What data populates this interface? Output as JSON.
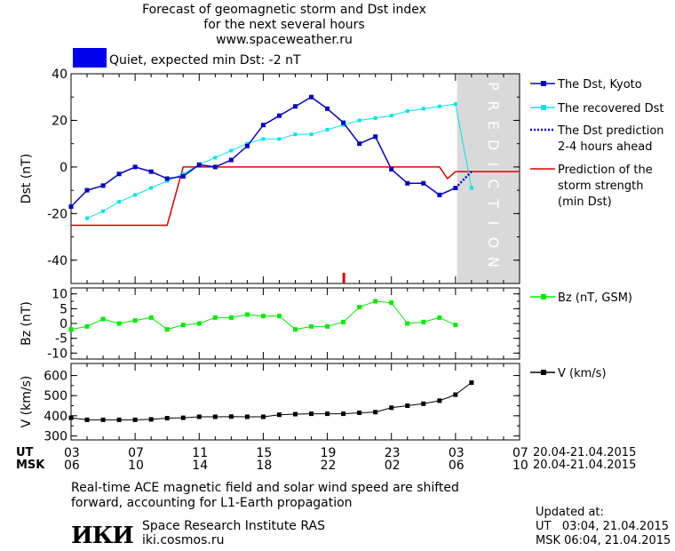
{
  "header": {
    "title_line1": "Forecast of geomagnetic storm and Dst index",
    "title_line2": "for the next several hours",
    "url": "www.spaceweather.ru",
    "status_text": "Quiet, expected min Dst: -2 nT",
    "status_color": "#0000ee"
  },
  "prediction_label": "PREDICTION",
  "time_axis": {
    "ut_label": "UT",
    "msk_label": "MSK",
    "ut_ticks": [
      "03",
      "07",
      "11",
      "15",
      "19",
      "23",
      "03",
      "07"
    ],
    "msk_ticks": [
      "06",
      "10",
      "14",
      "18",
      "22",
      "02",
      "06",
      "10"
    ],
    "date_range_ut": "20.04-21.04.2015",
    "date_range_msk": "20.04-21.04.2015"
  },
  "footer": {
    "note_line1": "Real-time ACE magnetic field and solar wind speed are shifted",
    "note_line2": "forward, accounting for L1-Earth propagation",
    "logo_text": "ИКИ",
    "institute": "Space Research Institute RAS",
    "site": "iki.cosmos.ru",
    "updated_label": "Updated at:",
    "updated_ut": "UT   03:04, 21.04.2015",
    "updated_msk": "MSK 06:04, 21.04.2015"
  },
  "chart_data": [
    {
      "type": "line",
      "ylabel": "Dst (nT)",
      "ylim": [
        -50,
        40
      ],
      "yticks": [
        40,
        20,
        0,
        -20,
        -40
      ],
      "xlim_hours_ut": [
        3,
        31
      ],
      "prediction_region_hours_ut": [
        27.1,
        31
      ],
      "series": [
        {
          "name": "The Dst, Kyoto",
          "color": "#0000cc",
          "marker": "square",
          "x": [
            3,
            4,
            5,
            6,
            7,
            8,
            9,
            10,
            11,
            12,
            13,
            14,
            15,
            16,
            17,
            18,
            19,
            20,
            21,
            22,
            23,
            24,
            25,
            26,
            27
          ],
          "y": [
            -17,
            -10,
            -8,
            -3,
            0,
            -2,
            -5,
            -4,
            1,
            0,
            3,
            9,
            18,
            22,
            26,
            30,
            25,
            19,
            10,
            13,
            -1,
            -7,
            -7,
            -12,
            -9
          ]
        },
        {
          "name": "The recovered Dst",
          "color": "#00e5ee",
          "marker": "square",
          "x": [
            4,
            5,
            6,
            7,
            8,
            9,
            10,
            11,
            12,
            13,
            14,
            15,
            16,
            17,
            18,
            19,
            20,
            21,
            22,
            23,
            24,
            25,
            26,
            27,
            28
          ],
          "y": [
            -22,
            -19,
            -15,
            -12,
            -9,
            -6,
            -3,
            1,
            4,
            7,
            10,
            12,
            12,
            14,
            14,
            16,
            18,
            20,
            21,
            22,
            24,
            25,
            26,
            27,
            -9
          ]
        },
        {
          "name": "The Dst prediction\n2-4 hours ahead",
          "color": "#0000cc",
          "style": "dotted",
          "x": [
            27,
            28
          ],
          "y": [
            -9,
            -2
          ]
        },
        {
          "name": "Prediction of the\nstorm strength\n(min Dst)",
          "color": "#dd0000",
          "x": [
            3,
            9,
            10,
            11,
            27.1,
            28,
            31
          ],
          "y": [
            -25,
            -25,
            0,
            0,
            0,
            -2,
            -2
          ],
          "steps": [
            {
              "x": 3,
              "y": -25
            },
            {
              "x": 9,
              "y": -25
            },
            {
              "x": 10,
              "y": 0
            },
            {
              "x": 26,
              "y": 0
            },
            {
              "x": 26.5,
              "y": -5
            },
            {
              "x": 27,
              "y": -2
            },
            {
              "x": 31,
              "y": -2
            }
          ]
        }
      ],
      "current_time_marker_hours_ut": 20
    },
    {
      "type": "line",
      "ylabel": "Bz (nT)",
      "ylim": [
        -12,
        12
      ],
      "yticks": [
        10,
        5,
        0,
        -5,
        -10
      ],
      "series": [
        {
          "name": "Bz (nT, GSM)",
          "color": "#00ee00",
          "marker": "square",
          "x": [
            3,
            4,
            5,
            6,
            7,
            8,
            9,
            10,
            11,
            12,
            13,
            14,
            15,
            16,
            17,
            18,
            19,
            20,
            21,
            22,
            23,
            24,
            25,
            26,
            27,
            28
          ],
          "y": [
            -2,
            -1,
            1.5,
            0,
            1,
            2,
            -2,
            -0.5,
            0,
            2,
            2,
            3,
            2.5,
            2.5,
            -2,
            -1,
            -1,
            0.5,
            5.5,
            7.5,
            7,
            0,
            0.5,
            2,
            -0.5,
            null
          ]
        }
      ]
    },
    {
      "type": "line",
      "ylabel": "V (km/s)",
      "ylim": [
        280,
        660
      ],
      "yticks": [
        600,
        500,
        400,
        300
      ],
      "series": [
        {
          "name": "V (km/s)",
          "color": "#000000",
          "marker": "square",
          "x": [
            3,
            4,
            5,
            6,
            7,
            8,
            9,
            10,
            11,
            12,
            13,
            14,
            15,
            16,
            17,
            18,
            19,
            20,
            21,
            22,
            23,
            24,
            25,
            26,
            27,
            28
          ],
          "y": [
            390,
            380,
            380,
            380,
            380,
            382,
            388,
            390,
            395,
            395,
            396,
            395,
            395,
            405,
            408,
            410,
            410,
            410,
            415,
            418,
            440,
            450,
            460,
            475,
            505,
            565
          ]
        }
      ]
    }
  ]
}
